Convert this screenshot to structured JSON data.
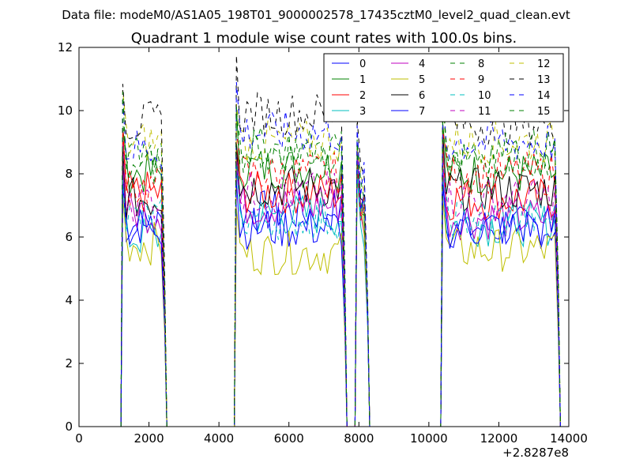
{
  "figure": {
    "suptitle": "Data file: modeM0/AS1A05_198T01_9000002578_17435cztM0_level2_quad_clean.evt"
  },
  "chart_data": {
    "type": "line",
    "title": "Quadrant 1 module wise count rates with 100.0s bins.",
    "xlabel": "",
    "ylabel": "",
    "x_offset_label": "+2.8287e8",
    "xlim": [
      0,
      14000
    ],
    "ylim": [
      0,
      12
    ],
    "xticks": [
      0,
      2000,
      4000,
      6000,
      8000,
      10000,
      12000,
      14000
    ],
    "xtick_labels": [
      "0",
      "2000",
      "4000",
      "6000",
      "8000",
      "10000",
      "12000",
      "14000"
    ],
    "yticks": [
      0,
      2,
      4,
      6,
      8,
      10,
      12
    ],
    "ytick_labels": [
      "0",
      "2",
      "4",
      "6",
      "8",
      "10",
      "12"
    ],
    "grid": false,
    "legend_position": "top-right",
    "legend_columns": 4,
    "bin_seconds": 100,
    "active_segments": [
      [
        1250,
        2450
      ],
      [
        4500,
        7600
      ],
      [
        7950,
        8250
      ],
      [
        10400,
        13700
      ]
    ],
    "series": [
      {
        "name": "0",
        "color": "#0000ff",
        "dash": "solid",
        "level_seg": [
          6.4,
          6.8,
          6.9,
          6.3
        ]
      },
      {
        "name": "1",
        "color": "#008000",
        "dash": "solid",
        "level_seg": [
          8.0,
          8.2,
          6.8,
          8.0
        ]
      },
      {
        "name": "2",
        "color": "#ff0000",
        "dash": "solid",
        "level_seg": [
          7.4,
          7.4,
          7.0,
          7.2
        ]
      },
      {
        "name": "3",
        "color": "#00bfbf",
        "dash": "solid",
        "level_seg": [
          6.0,
          6.7,
          6.3,
          6.4
        ]
      },
      {
        "name": "4",
        "color": "#bf00bf",
        "dash": "solid",
        "level_seg": [
          6.8,
          7.0,
          6.5,
          6.6
        ]
      },
      {
        "name": "5",
        "color": "#bfbf00",
        "dash": "solid",
        "level_seg": [
          5.8,
          5.5,
          6.8,
          5.6
        ]
      },
      {
        "name": "6",
        "color": "#000000",
        "dash": "solid",
        "level_seg": [
          7.2,
          7.6,
          7.0,
          7.5
        ]
      },
      {
        "name": "7",
        "color": "#0000ff",
        "dash": "solid",
        "level_seg": [
          6.3,
          6.3,
          6.7,
          6.3
        ]
      },
      {
        "name": "8",
        "color": "#008000",
        "dash": "dashed",
        "level_seg": [
          8.3,
          8.7,
          7.5,
          8.4
        ]
      },
      {
        "name": "9",
        "color": "#ff0000",
        "dash": "dashed",
        "level_seg": [
          7.6,
          8.0,
          7.2,
          8.0
        ]
      },
      {
        "name": "10",
        "color": "#00bfbf",
        "dash": "dashed",
        "level_seg": [
          6.6,
          6.6,
          6.5,
          6.6
        ]
      },
      {
        "name": "11",
        "color": "#bf00bf",
        "dash": "dashed",
        "level_seg": [
          7.2,
          7.4,
          7.0,
          7.2
        ]
      },
      {
        "name": "12",
        "color": "#bfbf00",
        "dash": "dashed",
        "level_seg": [
          9.0,
          9.0,
          7.6,
          9.0
        ]
      },
      {
        "name": "13",
        "color": "#000000",
        "dash": "dashed",
        "level_seg": [
          9.6,
          9.9,
          8.0,
          9.6
        ]
      },
      {
        "name": "14",
        "color": "#0000ff",
        "dash": "dashed",
        "level_seg": [
          8.8,
          9.3,
          7.7,
          9.0
        ]
      },
      {
        "name": "15",
        "color": "#008000",
        "dash": "dashed",
        "level_seg": [
          8.6,
          8.8,
          7.4,
          8.7
        ]
      }
    ]
  }
}
